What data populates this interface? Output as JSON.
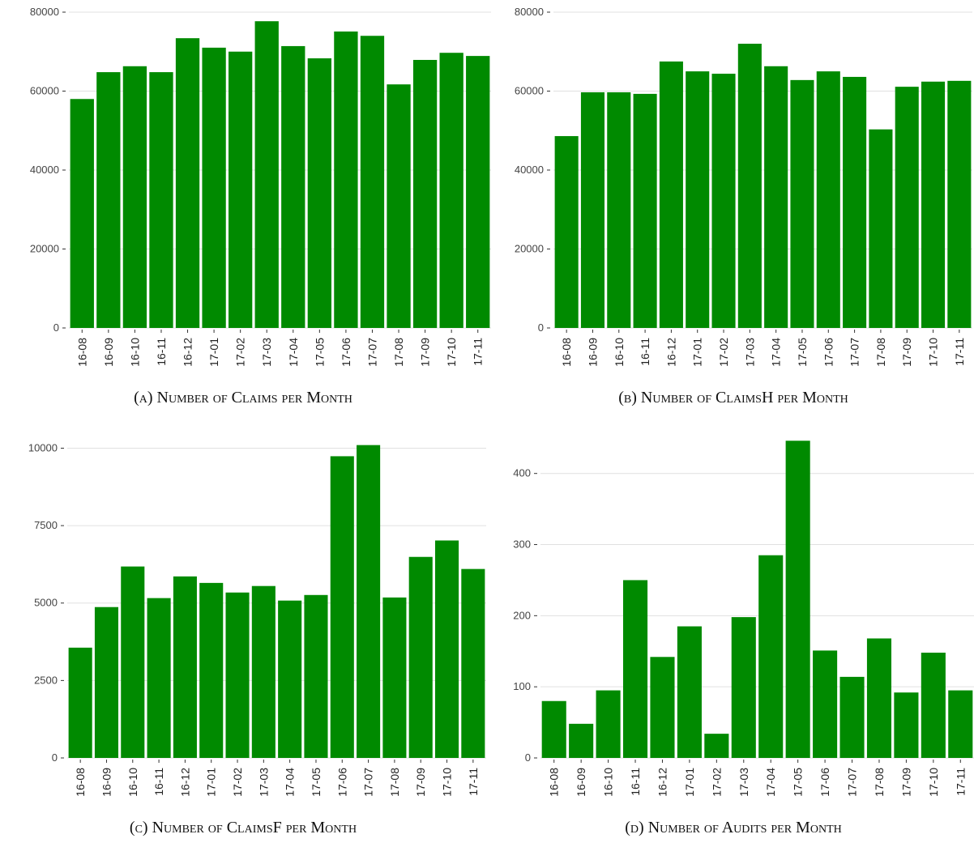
{
  "chart_data": [
    {
      "type": "bar",
      "title": "(a) Number of Claims per Month",
      "color": "#008a00",
      "grid": true,
      "categories": [
        "16-08",
        "16-09",
        "16-10",
        "16-11",
        "16-12",
        "17-01",
        "17-02",
        "17-03",
        "17-04",
        "17-05",
        "17-06",
        "17-07",
        "17-08",
        "17-09",
        "17-10",
        "17-11"
      ],
      "values": [
        58000,
        64800,
        66300,
        64800,
        73400,
        71000,
        70000,
        77700,
        71400,
        68300,
        75100,
        74000,
        61700,
        67900,
        69700,
        68900
      ],
      "ylim": [
        0,
        80000
      ],
      "yticks": [
        0,
        20000,
        40000,
        60000,
        80000
      ]
    },
    {
      "type": "bar",
      "title": "(b) Number of ClaimsH per Month",
      "color": "#008a00",
      "grid": true,
      "categories": [
        "16-08",
        "16-09",
        "16-10",
        "16-11",
        "16-12",
        "17-01",
        "17-02",
        "17-03",
        "17-04",
        "17-05",
        "17-06",
        "17-07",
        "17-08",
        "17-09",
        "17-10",
        "17-11"
      ],
      "values": [
        48600,
        59700,
        59700,
        59300,
        67500,
        65000,
        64400,
        72000,
        66300,
        62800,
        65000,
        63600,
        50300,
        61100,
        62400,
        62600
      ],
      "ylim": [
        0,
        80000
      ],
      "yticks": [
        0,
        20000,
        40000,
        60000,
        80000
      ]
    },
    {
      "type": "bar",
      "title": "(c) Number of ClaimsF per Month",
      "color": "#008a00",
      "grid": true,
      "categories": [
        "16-08",
        "16-09",
        "16-10",
        "16-11",
        "16-12",
        "17-01",
        "17-02",
        "17-03",
        "17-04",
        "17-05",
        "17-06",
        "17-07",
        "17-08",
        "17-09",
        "17-10",
        "17-11"
      ],
      "values": [
        3560,
        4870,
        6180,
        5160,
        5860,
        5650,
        5340,
        5550,
        5080,
        5260,
        9740,
        10100,
        5180,
        6490,
        7020,
        6100
      ],
      "ylim": [
        0,
        10300
      ],
      "yticks": [
        0,
        2500,
        5000,
        7500,
        10000
      ]
    },
    {
      "type": "bar",
      "title": "(d) Number of Audits per Month",
      "color": "#008a00",
      "grid": true,
      "categories": [
        "16-08",
        "16-09",
        "16-10",
        "16-11",
        "16-12",
        "17-01",
        "17-02",
        "17-03",
        "17-04",
        "17-05",
        "17-06",
        "17-07",
        "17-08",
        "17-09",
        "17-10",
        "17-11"
      ],
      "values": [
        80,
        48,
        95,
        250,
        142,
        185,
        34,
        198,
        285,
        446,
        151,
        114,
        168,
        92,
        148,
        95
      ],
      "ylim": [
        0,
        460
      ],
      "yticks": [
        0,
        100,
        200,
        300,
        400
      ]
    }
  ]
}
